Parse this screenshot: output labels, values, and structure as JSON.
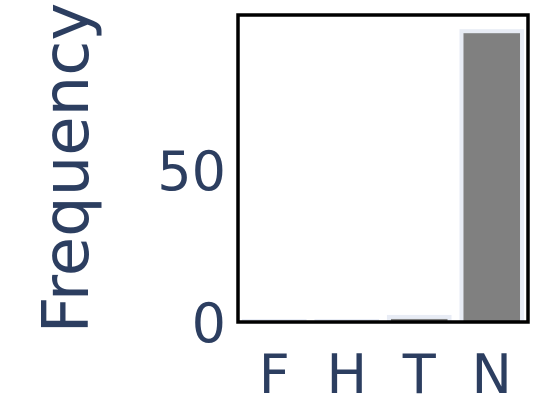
{
  "chart_data": {
    "type": "bar",
    "title": "",
    "xlabel": "",
    "ylabel": "Frequency",
    "categories": [
      "F",
      "H",
      "T",
      "N"
    ],
    "values": [
      0,
      0,
      1,
      95
    ],
    "ylim": [
      0,
      100
    ],
    "yticks": [
      0,
      50
    ],
    "grid": false,
    "colors": {
      "bar": "#808080",
      "bar_halo": "#e8ecf5",
      "text": "#2c3e60",
      "frame": "#000000"
    }
  }
}
